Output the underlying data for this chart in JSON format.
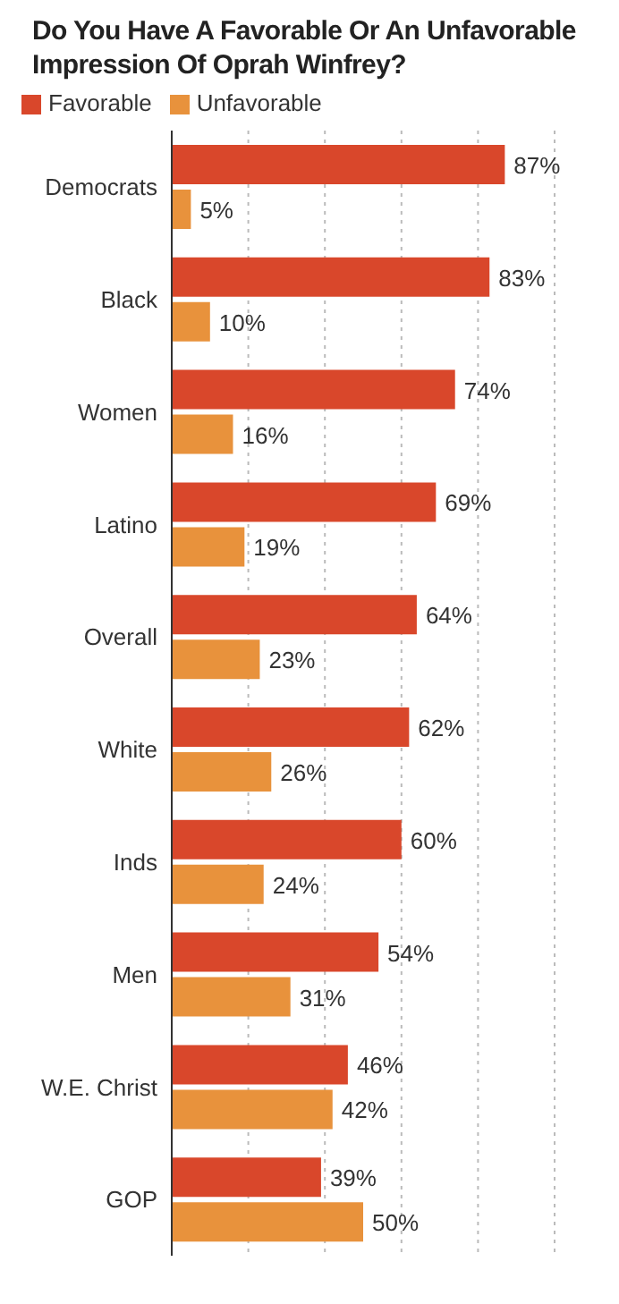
{
  "chart_data": {
    "type": "bar",
    "orientation": "horizontal",
    "title": "Do You Have A Favorable Or An Unfavorable Impression Of Oprah Winfrey?",
    "categories": [
      "Democrats",
      "Black",
      "Women",
      "Latino",
      "Overall",
      "White",
      "Inds",
      "Men",
      "W.E. Christ",
      "GOP"
    ],
    "series": [
      {
        "name": "Favorable",
        "color": "#d9472b",
        "values": [
          87,
          83,
          74,
          69,
          64,
          62,
          60,
          54,
          46,
          39
        ],
        "value_labels": [
          "87%",
          "83%",
          "74%",
          "69%",
          "64%",
          "62%",
          "60%",
          "54%",
          "46%",
          "39%"
        ]
      },
      {
        "name": "Unfavorable",
        "color": "#e8923c",
        "values": [
          5,
          10,
          16,
          19,
          23,
          26,
          24,
          31,
          42,
          50
        ],
        "value_labels": [
          "5%",
          "10%",
          "16%",
          "19%",
          "23%",
          "26%",
          "24%",
          "31%",
          "42%",
          "50%"
        ]
      }
    ],
    "xlim": [
      0,
      100
    ],
    "xticks": [
      {
        "value": 20,
        "label": null
      },
      {
        "value": 40,
        "label": null
      },
      {
        "value": 60,
        "label": null
      },
      {
        "value": 80,
        "label": null
      },
      {
        "value": 100,
        "label": null
      }
    ],
    "grid": "x",
    "legend": "top left",
    "tick_labels": "y"
  }
}
